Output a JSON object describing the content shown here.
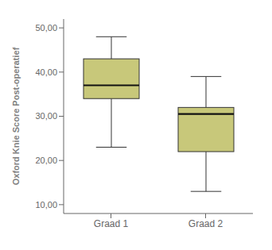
{
  "chart_data": {
    "type": "box",
    "categories": [
      "Graad 1",
      "Graad 2"
    ],
    "boxes": [
      {
        "whisker_low": 23,
        "q1": 34,
        "median": 37,
        "q3": 43,
        "whisker_high": 48
      },
      {
        "whisker_low": 13,
        "q1": 22,
        "median": 30.5,
        "q3": 32,
        "whisker_high": 39
      }
    ],
    "ylabel": "Oxford Knie Score Post-operatief",
    "ylim": [
      8,
      52
    ],
    "yticks": [
      {
        "value": 10,
        "label": "10,00"
      },
      {
        "value": 20,
        "label": "20,00"
      },
      {
        "value": 30,
        "label": "30,00"
      },
      {
        "value": 40,
        "label": "40,00"
      },
      {
        "value": 50,
        "label": "50,00"
      }
    ],
    "color": "#c8c87a",
    "grid": false
  }
}
